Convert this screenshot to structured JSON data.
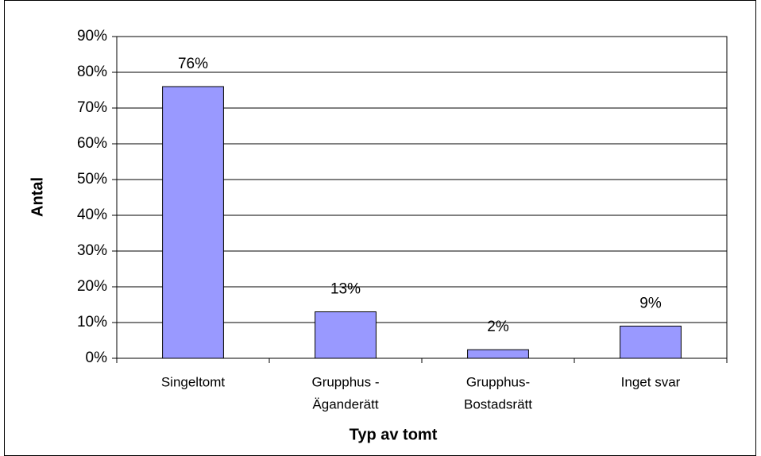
{
  "chart_data": {
    "type": "bar",
    "x_label": "Typ av tomt",
    "y_label": "Antal",
    "categories": [
      [
        "Singeltomt"
      ],
      [
        "Grupphus -",
        "Äganderätt"
      ],
      [
        "Grupphus-",
        "Bostadsrätt"
      ],
      [
        "Inget svar"
      ]
    ],
    "values": [
      76,
      13,
      2.4,
      9
    ],
    "value_labels": [
      "76%",
      "13%",
      "2%",
      "9%"
    ],
    "color": "#9999ff",
    "ylim": [
      0,
      90
    ],
    "yticks": [
      {
        "value": 0,
        "label": "0%"
      },
      {
        "value": 10,
        "label": "10%"
      },
      {
        "value": 20,
        "label": "20%"
      },
      {
        "value": 30,
        "label": "30%"
      },
      {
        "value": 40,
        "label": "40%"
      },
      {
        "value": 50,
        "label": "50%"
      },
      {
        "value": 60,
        "label": "60%"
      },
      {
        "value": 70,
        "label": "70%"
      },
      {
        "value": 80,
        "label": "80%"
      },
      {
        "value": 90,
        "label": "90%"
      }
    ],
    "grid": true
  }
}
